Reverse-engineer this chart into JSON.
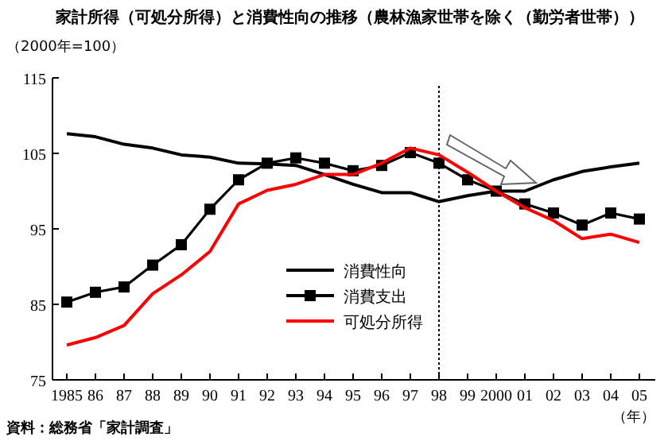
{
  "chart_data": {
    "type": "line",
    "title": "家計所得（可処分所得）と消費性向の推移（農林漁家世帯を除く（勤労者世帯））",
    "ylabel": "（2000年=100）",
    "xlabel": "（年）",
    "annotations": [
      "資料：総務省「家計調査」"
    ],
    "categories": [
      "1985",
      "86",
      "87",
      "88",
      "89",
      "90",
      "91",
      "92",
      "93",
      "94",
      "95",
      "96",
      "97",
      "98",
      "99",
      "2000",
      "01",
      "02",
      "03",
      "04",
      "05"
    ],
    "ylim": [
      75,
      115
    ],
    "yticks": [
      75,
      85,
      95,
      105,
      115
    ],
    "grid": false,
    "legend": "bottom",
    "ref_lines": [
      {
        "axis": "x",
        "value": "98",
        "color": "#000000",
        "line_style": "dotted"
      }
    ],
    "series": [
      {
        "name": "消費性向",
        "color": "#000000",
        "marker": "none",
        "values": [
          107.6,
          107.2,
          106.2,
          105.7,
          104.8,
          104.5,
          103.7,
          103.6,
          103.4,
          102.2,
          100.9,
          99.8,
          99.8,
          98.6,
          99.4,
          100,
          100,
          101.5,
          102.6,
          103.2,
          103.7
        ]
      },
      {
        "name": "消費支出",
        "color": "#000000",
        "marker": "square",
        "values": [
          85.3,
          86.6,
          87.3,
          90.2,
          92.9,
          97.6,
          101.5,
          103.7,
          104.4,
          103.7,
          102.7,
          103.4,
          105.1,
          103.7,
          101.5,
          100,
          98.3,
          97.1,
          95.5,
          97.1,
          96.3
        ]
      },
      {
        "name": "可処分所得",
        "color": "#ff0000",
        "marker": "none",
        "values": [
          79.6,
          80.6,
          82.2,
          86.4,
          88.9,
          92.0,
          98.3,
          100.1,
          100.9,
          102.2,
          102.2,
          103.7,
          105.7,
          104.8,
          102.5,
          100,
          97.8,
          96.1,
          93.7,
          94.3,
          93.2
        ]
      }
    ]
  }
}
